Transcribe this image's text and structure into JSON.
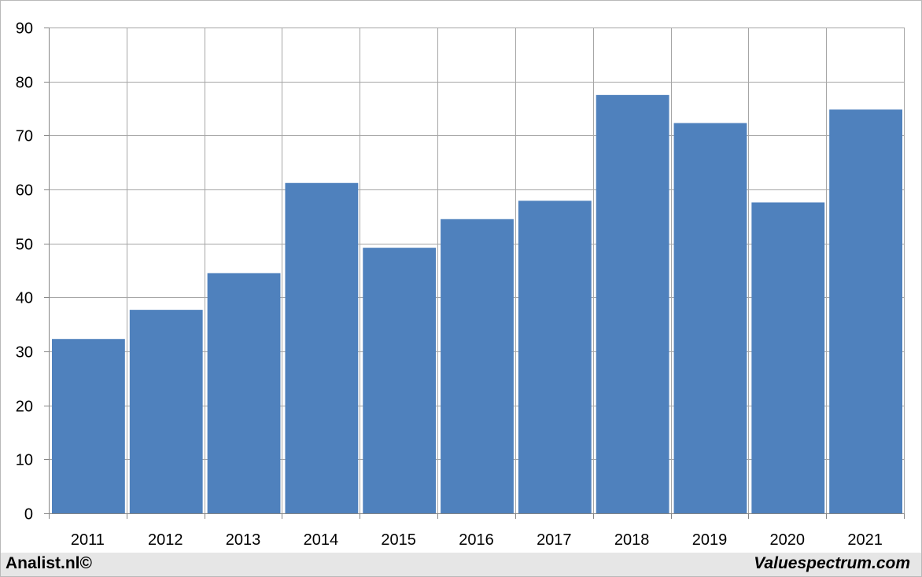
{
  "chart_data": {
    "type": "bar",
    "categories": [
      "2011",
      "2012",
      "2013",
      "2014",
      "2015",
      "2016",
      "2017",
      "2018",
      "2019",
      "2020",
      "2021"
    ],
    "values": [
      32.3,
      37.7,
      44.5,
      61.2,
      49.2,
      54.5,
      57.9,
      77.5,
      72.3,
      57.6,
      74.8
    ],
    "title": "",
    "xlabel": "",
    "ylabel": "",
    "ylim": [
      0,
      90
    ],
    "yticks": [
      "0",
      "10",
      "20",
      "30",
      "40",
      "50",
      "60",
      "70",
      "80",
      "90"
    ],
    "grid": true,
    "bar_color": "#4f81bd",
    "grid_color": "#a6a6a6"
  },
  "footer": {
    "left_label": "Analist.nl©",
    "right_label": "Valuespectrum.com"
  }
}
